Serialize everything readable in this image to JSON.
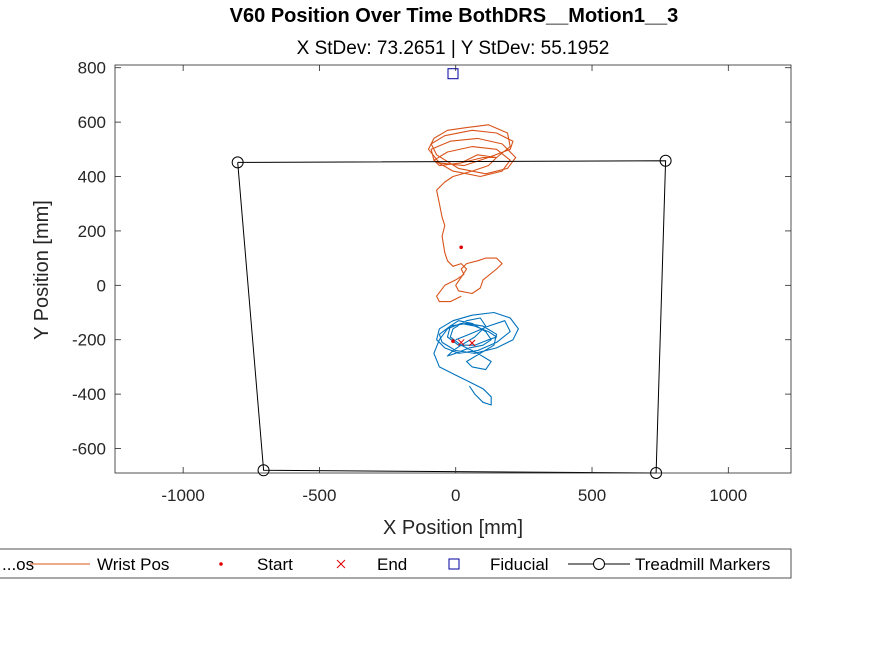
{
  "chart_data": {
    "type": "line",
    "title": "V60 Position Over Time BothDRS__Motion1__3",
    "subtitle": "X StDev: 73.2651  |  Y StDev: 55.1952",
    "xlabel": "X Position [mm]",
    "ylabel": "Y Position [mm]",
    "xlim": [
      -1250,
      1230
    ],
    "ylim": [
      -690,
      810
    ],
    "xticks": [
      -1000,
      -500,
      0,
      500,
      1000
    ],
    "yticks": [
      -600,
      -400,
      -200,
      0,
      200,
      400,
      600,
      800
    ],
    "grid": false,
    "legend_position": "bottom",
    "legend": [
      {
        "label": "...os",
        "style": "blue-line"
      },
      {
        "label": "Wrist Pos",
        "style": "orange-line"
      },
      {
        "label": "Start",
        "style": "red-dot"
      },
      {
        "label": "End",
        "style": "red-x"
      },
      {
        "label": "Fiducial",
        "style": "navy-square"
      },
      {
        "label": "Treadmill Markers",
        "style": "black-line-circle"
      }
    ],
    "colors": {
      "blue": "#0072BD",
      "orange": "#D95319",
      "red": "#E00000",
      "navy": "#0000A0",
      "black": "#000000"
    },
    "series": [
      {
        "name": "Wrist Pos",
        "color": "#D95319",
        "x": [
          20,
          80,
          150,
          200,
          190,
          120,
          40,
          -30,
          -80,
          -100,
          -60,
          30,
          120,
          200,
          210,
          150,
          60,
          -40,
          -90,
          -70,
          10,
          110,
          190,
          220,
          170,
          80,
          -20,
          -90,
          -80,
          -10,
          90,
          170,
          200,
          150,
          60,
          -30,
          -80,
          -60,
          20,
          100,
          150,
          120,
          60,
          -10,
          -40,
          -70,
          -60,
          -50,
          -40,
          -50,
          -40,
          -30,
          -10,
          20,
          40,
          20,
          0,
          10,
          60,
          90,
          100,
          150,
          170,
          150,
          110,
          80,
          40,
          20,
          30,
          0,
          -40,
          -70,
          -60,
          -20,
          20
        ],
        "y": [
          450,
          480,
          470,
          510,
          560,
          590,
          580,
          570,
          540,
          500,
          450,
          440,
          470,
          500,
          530,
          560,
          570,
          550,
          520,
          480,
          430,
          410,
          430,
          470,
          520,
          540,
          530,
          500,
          460,
          420,
          400,
          420,
          460,
          500,
          510,
          490,
          460,
          440,
          450,
          470,
          470,
          440,
          420,
          400,
          380,
          350,
          300,
          250,
          220,
          180,
          120,
          90,
          70,
          80,
          60,
          30,
          0,
          -20,
          -30,
          -10,
          20,
          60,
          80,
          100,
          100,
          90,
          80,
          60,
          40,
          20,
          0,
          -40,
          -60,
          -60,
          -40
        ]
      },
      {
        "name": "...os",
        "color": "#0072BD",
        "x": [
          0,
          50,
          120,
          180,
          200,
          150,
          80,
          10,
          -40,
          -70,
          -60,
          -10,
          60,
          140,
          200,
          230,
          210,
          150,
          70,
          0,
          -50,
          -60,
          -20,
          40,
          100,
          150,
          140,
          90,
          40,
          60,
          110,
          130,
          80,
          20,
          -20,
          -10,
          40,
          90,
          110,
          70,
          20,
          -10,
          -30,
          0,
          50,
          100,
          130,
          110,
          60,
          10,
          -20,
          -30,
          10,
          70,
          120,
          150,
          120,
          70,
          20,
          -30,
          -60,
          -80,
          -60,
          0,
          60,
          100,
          130,
          130,
          100,
          70,
          50
        ],
        "y": [
          -200,
          -180,
          -150,
          -130,
          -170,
          -210,
          -240,
          -250,
          -230,
          -200,
          -160,
          -130,
          -110,
          -100,
          -120,
          -160,
          -200,
          -230,
          -250,
          -240,
          -210,
          -180,
          -150,
          -140,
          -150,
          -180,
          -220,
          -250,
          -280,
          -300,
          -310,
          -280,
          -250,
          -220,
          -190,
          -160,
          -130,
          -120,
          -150,
          -190,
          -220,
          -240,
          -260,
          -250,
          -230,
          -220,
          -200,
          -170,
          -140,
          -130,
          -150,
          -190,
          -220,
          -220,
          -200,
          -190,
          -170,
          -150,
          -140,
          -160,
          -200,
          -250,
          -300,
          -330,
          -360,
          -380,
          -410,
          -440,
          -430,
          -400,
          -370
        ]
      }
    ],
    "start_points": [
      {
        "x": 20,
        "y": 140
      },
      {
        "x": -10,
        "y": -205
      }
    ],
    "end_points": [
      {
        "x": 20,
        "y": -210
      },
      {
        "x": 60,
        "y": -212
      }
    ],
    "fiducial": {
      "x": -10,
      "y": 778
    },
    "treadmill_markers": [
      {
        "x": -800,
        "y": 452
      },
      {
        "x": 770,
        "y": 458
      },
      {
        "x": 735,
        "y": -690
      },
      {
        "x": -705,
        "y": -680
      }
    ]
  }
}
